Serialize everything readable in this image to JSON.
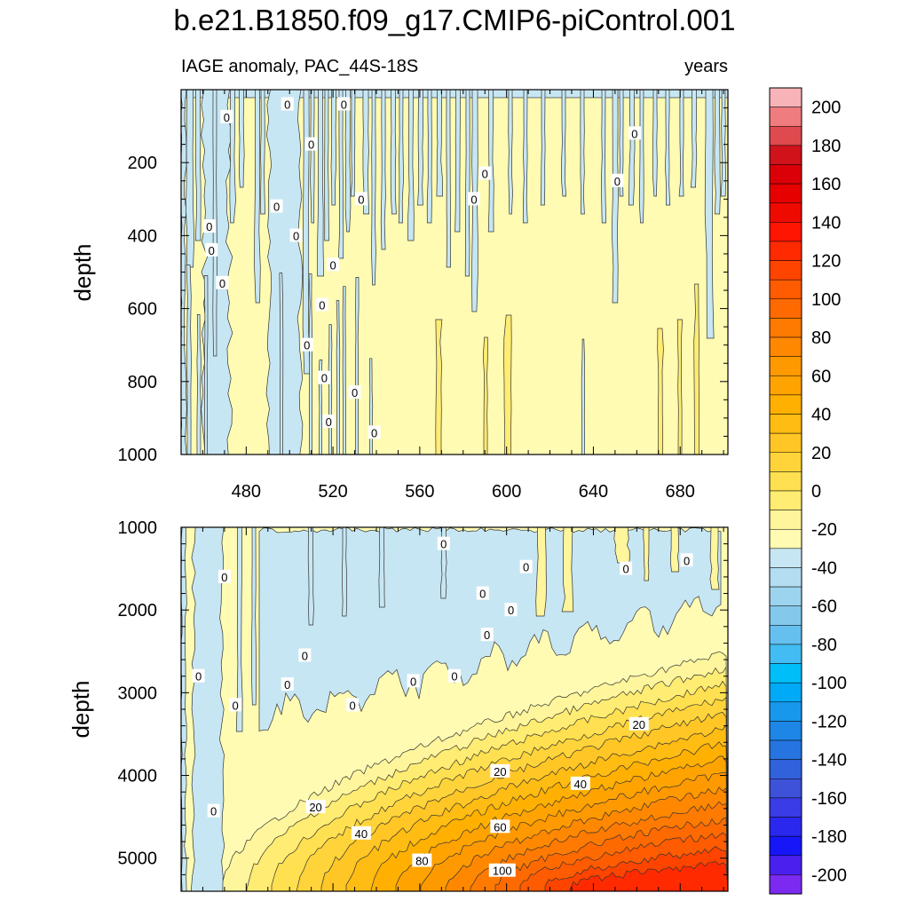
{
  "chart_data": {
    "type": "heatmap",
    "title": "b.e21.B1850.f09_g17.CMIP6-piControl.001",
    "subtitle_left": "IAGE anomaly, PAC_44S-18S",
    "subtitle_right": "years",
    "xlabel": "",
    "ylabel": "depth",
    "xlim": [
      450,
      702
    ],
    "x_ticks": [
      480,
      520,
      560,
      600,
      640,
      680
    ],
    "x_tick_labels": [
      "480",
      "520",
      "560",
      "600",
      "640",
      "680"
    ],
    "panels": [
      {
        "name": "upper",
        "ylim": [
          0,
          1000
        ],
        "y_ticks": [
          200,
          400,
          600,
          800,
          1000
        ],
        "y_tick_labels": [
          "200",
          "400",
          "600",
          "800",
          "1000"
        ],
        "contour_labels": [
          {
            "text": "0",
            "x": 471,
            "y": 75
          },
          {
            "text": "0",
            "x": 499,
            "y": 40
          },
          {
            "text": "0",
            "x": 525,
            "y": 40
          },
          {
            "text": "0",
            "x": 510,
            "y": 150
          },
          {
            "text": "0",
            "x": 659,
            "y": 120
          },
          {
            "text": "0",
            "x": 590,
            "y": 230
          },
          {
            "text": "0",
            "x": 651,
            "y": 250
          },
          {
            "text": "0",
            "x": 533,
            "y": 300
          },
          {
            "text": "0",
            "x": 585,
            "y": 300
          },
          {
            "text": "0",
            "x": 494,
            "y": 320
          },
          {
            "text": "0",
            "x": 463,
            "y": 375
          },
          {
            "text": "0",
            "x": 503,
            "y": 400
          },
          {
            "text": "0",
            "x": 464,
            "y": 440
          },
          {
            "text": "0",
            "x": 520,
            "y": 480
          },
          {
            "text": "0",
            "x": 469,
            "y": 530
          },
          {
            "text": "0",
            "x": 515,
            "y": 590
          },
          {
            "text": "0",
            "x": 508,
            "y": 700
          },
          {
            "text": "0",
            "x": 516,
            "y": 790
          },
          {
            "text": "0",
            "x": 530,
            "y": 830
          },
          {
            "text": "0",
            "x": 518,
            "y": 910
          },
          {
            "text": "0",
            "x": 539,
            "y": 940
          }
        ]
      },
      {
        "name": "lower",
        "ylim": [
          1000,
          5400
        ],
        "y_ticks": [
          1000,
          2000,
          3000,
          4000,
          5000
        ],
        "y_tick_labels": [
          "1000",
          "2000",
          "3000",
          "4000",
          "5000"
        ],
        "contour_labels": [
          {
            "text": "0",
            "x": 470,
            "y": 1600
          },
          {
            "text": "0",
            "x": 571,
            "y": 1200
          },
          {
            "text": "0",
            "x": 609,
            "y": 1480
          },
          {
            "text": "0",
            "x": 602,
            "y": 2000
          },
          {
            "text": "0",
            "x": 589,
            "y": 1800
          },
          {
            "text": "0",
            "x": 655,
            "y": 1500
          },
          {
            "text": "0",
            "x": 683,
            "y": 1400
          },
          {
            "text": "0",
            "x": 591,
            "y": 2300
          },
          {
            "text": "0",
            "x": 458,
            "y": 2800
          },
          {
            "text": "0",
            "x": 507,
            "y": 2550
          },
          {
            "text": "0",
            "x": 499,
            "y": 2900
          },
          {
            "text": "0",
            "x": 475,
            "y": 3150
          },
          {
            "text": "0",
            "x": 529,
            "y": 3150
          },
          {
            "text": "0",
            "x": 557,
            "y": 2860
          },
          {
            "text": "0",
            "x": 576,
            "y": 2800
          },
          {
            "text": "20",
            "x": 661,
            "y": 3380
          },
          {
            "text": "20",
            "x": 597,
            "y": 3950
          },
          {
            "text": "40",
            "x": 634,
            "y": 4100
          },
          {
            "text": "20",
            "x": 512,
            "y": 4380
          },
          {
            "text": "0",
            "x": 465,
            "y": 4430
          },
          {
            "text": "60",
            "x": 597,
            "y": 4620
          },
          {
            "text": "40",
            "x": 533,
            "y": 4700
          },
          {
            "text": "80",
            "x": 561,
            "y": 5030
          },
          {
            "text": "100",
            "x": 598,
            "y": 5150
          }
        ]
      }
    ],
    "colorbar": {
      "levels": [
        -210,
        -200,
        -190,
        -180,
        -170,
        -160,
        -150,
        -140,
        -130,
        -120,
        -110,
        -100,
        -90,
        -80,
        -70,
        -60,
        -50,
        -40,
        -30,
        -20,
        -10,
        0,
        10,
        20,
        30,
        40,
        50,
        60,
        70,
        80,
        90,
        100,
        110,
        120,
        130,
        140,
        150,
        160,
        170,
        180,
        190,
        200,
        210
      ],
      "labels": [
        "200",
        "180",
        "160",
        "140",
        "120",
        "100",
        "80",
        "60",
        "40",
        "20",
        "0",
        "-20",
        "-40",
        "-60",
        "-80",
        "-100",
        "-120",
        "-140",
        "-160",
        "-180",
        "-200"
      ],
      "colors_high_to_low": [
        "#f7b3b8",
        "#ef7c7e",
        "#df4a4e",
        "#d0121a",
        "#db0007",
        "#e60000",
        "#ef0a00",
        "#ff1500",
        "#ff2a00",
        "#ff4400",
        "#ff5b00",
        "#ff6a00",
        "#ff7a00",
        "#ff8800",
        "#ff9900",
        "#ffa300",
        "#ffb000",
        "#ffbc12",
        "#ffc626",
        "#ffd43b",
        "#ffe050",
        "#ffec72",
        "#fff59c",
        "#fffbb3",
        "#c7e6f3",
        "#b3ddf0",
        "#9cd3ee",
        "#84c8ec",
        "#66c0ef",
        "#42bcf2",
        "#00bef8",
        "#00aaf6",
        "#1898ec",
        "#1d86e6",
        "#2674e0",
        "#3162dc",
        "#3d52d9",
        "#3a3ce6",
        "#2a28ee",
        "#1616f6",
        "#4a20ee",
        "#7c2aef"
      ]
    }
  }
}
